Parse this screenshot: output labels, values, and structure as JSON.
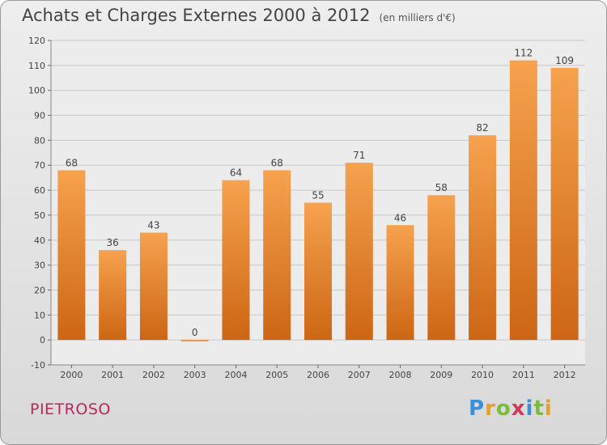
{
  "title": "Achats et Charges Externes 2000 à 2012",
  "unit": "(en milliers d'€)",
  "commune": "PIETROSO",
  "logo": {
    "letters": [
      "P",
      "r",
      "o",
      "x",
      "i",
      "t",
      "i"
    ],
    "colors": [
      "#3a8fd6",
      "#e8a020",
      "#7abd3a",
      "#d23a5a",
      "#3a8fd6",
      "#7abd3a",
      "#e8a020"
    ]
  },
  "colors": {
    "bar_light": "#f6a24e",
    "bar_dark": "#cc6615",
    "grid": "#c8c8c8",
    "axis_text": "#444444"
  },
  "chart_data": {
    "type": "bar",
    "title": "Achats et Charges Externes 2000 à 2012",
    "subtitle": "(en milliers d'€)",
    "categories": [
      "2000",
      "2001",
      "2002",
      "2003",
      "2004",
      "2005",
      "2006",
      "2007",
      "2008",
      "2009",
      "2010",
      "2011",
      "2012"
    ],
    "values": [
      68,
      36,
      43,
      0,
      64,
      68,
      55,
      71,
      46,
      58,
      82,
      112,
      109
    ],
    "ylim": [
      -10,
      120
    ],
    "yticks": [
      -10,
      0,
      10,
      20,
      30,
      40,
      50,
      60,
      70,
      80,
      90,
      100,
      110,
      120
    ],
    "grid": true,
    "data_labels": true,
    "legend": "none"
  }
}
